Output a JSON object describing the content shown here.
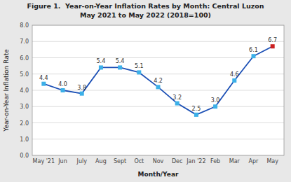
{
  "chart_data": {
    "type": "line",
    "title": "Figure 1.  Year-on-Year Inflation Rates by Month: Central Luzon",
    "subtitle": "May 2021 to May 2022 (2018=100)",
    "xlabel": "Month/Year",
    "ylabel": "Year-on-Year Inflation Rate",
    "categories": [
      "May '21",
      "Jun",
      "July",
      "Aug",
      "Sept",
      "Oct",
      "Nov",
      "Dec",
      "Jan '22",
      "Feb",
      "Mar",
      "Apr",
      "May"
    ],
    "values": [
      4.4,
      4.0,
      3.8,
      5.4,
      5.4,
      5.1,
      4.2,
      3.2,
      2.5,
      3.0,
      4.6,
      6.1,
      6.7
    ],
    "value_labels": [
      "4.4",
      "4.0",
      "3.8",
      "5.4",
      "5.4",
      "5.1",
      "4.2",
      "3.2",
      "2.5",
      "3.0",
      "4.6",
      "6.1",
      "6.7"
    ],
    "color": "#1b4fb5",
    "colors": [
      "#3cb0e8",
      "#3cb0e8",
      "#3cb0e8",
      "#3cb0e8",
      "#3cb0e8",
      "#3cb0e8",
      "#3cb0e8",
      "#3cb0e8",
      "#3cb0e8",
      "#3cb0e8",
      "#3cb0e8",
      "#3cb0e8",
      "#cc2020"
    ],
    "marker": "square",
    "ylim": [
      0.0,
      8.0
    ],
    "yticks": [
      {
        "value": 0.0,
        "label": "0.0"
      },
      {
        "value": 1.0,
        "label": "1.0"
      },
      {
        "value": 2.0,
        "label": "2.0"
      },
      {
        "value": 3.0,
        "label": "3.0"
      },
      {
        "value": 4.0,
        "label": "4.0"
      },
      {
        "value": 5.0,
        "label": "5.0"
      },
      {
        "value": 6.0,
        "label": "6.0"
      },
      {
        "value": 7.0,
        "label": "7.0"
      },
      {
        "value": 8.0,
        "label": "8.0"
      }
    ],
    "grid": true,
    "data_labels": true
  }
}
